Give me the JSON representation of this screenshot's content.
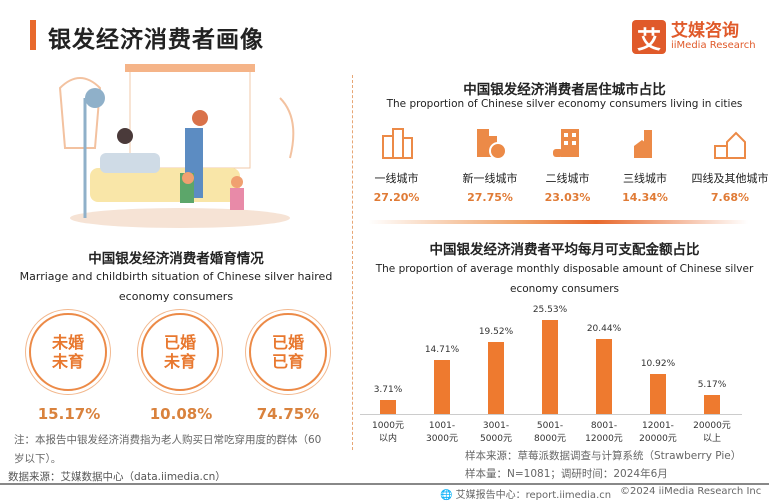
{
  "header": {
    "title": "银发经济消费者画像",
    "logo_cn": "艾媒咨询",
    "logo_en": "iiMedia Research",
    "logo_mark": "艾"
  },
  "marriage": {
    "title": "中国银发经济消费者婚育情况",
    "subtitle_line1": "Marriage and childbirth situation of Chinese silver haired",
    "subtitle_line2": "economy consumers",
    "items": [
      {
        "line1": "未婚",
        "line2": "未育",
        "value": "15.17%"
      },
      {
        "line1": "已婚",
        "line2": "未育",
        "value": "10.08%"
      },
      {
        "line1": "已婚",
        "line2": "已育",
        "value": "74.75%"
      }
    ],
    "note_line1": "注：本报告中银发经济消费指为老人购买日常吃穿用度的群体（60",
    "note_line2": "岁以下）。",
    "source": "数据来源：艾媒数据中心（data.iimedia.cn）"
  },
  "cities": {
    "title": "中国银发经济消费者居住城市占比",
    "subtitle": "The proportion of Chinese silver economy consumers living in cities",
    "items": [
      {
        "label": "一线城市",
        "value": "27.20%",
        "icon": "skyscrapers-icon"
      },
      {
        "label": "新一线城市",
        "value": "27.75%",
        "icon": "office-growth-icon"
      },
      {
        "label": "二线城市",
        "value": "23.03%",
        "icon": "building-icon"
      },
      {
        "label": "三线城市",
        "value": "14.34%",
        "icon": "tower-house-icon"
      },
      {
        "label": "四线及其他城市",
        "value": "7.68%",
        "icon": "house-fence-icon"
      }
    ]
  },
  "chart_data": {
    "type": "bar",
    "title": "中国银发经济消费者平均每月可支配金额占比",
    "subtitle_line1": "The proportion of average monthly disposable amount of Chinese silver",
    "subtitle_line2": "economy consumers",
    "categories": [
      [
        "1000元",
        "以内"
      ],
      [
        "1001-",
        "3000元"
      ],
      [
        "3001-",
        "5000元"
      ],
      [
        "5001-",
        "8000元"
      ],
      [
        "8001-",
        "12000元"
      ],
      [
        "12001-",
        "20000元"
      ],
      [
        "20000元",
        "以上"
      ]
    ],
    "values": [
      3.71,
      14.71,
      19.52,
      25.53,
      20.44,
      10.92,
      5.17
    ],
    "labels": [
      "3.71%",
      "14.71%",
      "19.52%",
      "25.53%",
      "20.44%",
      "10.92%",
      "5.17%"
    ],
    "color": "#ee7a2f",
    "grid": false
  },
  "sample": {
    "source": "样本来源：草莓派数据调查与计算系统（Strawberry Pie）",
    "size": "样本量：N=1081；调研时间：2024年6月"
  },
  "footer": {
    "center": "艾媒报告中心：report.iimedia.cn",
    "copyright": "©2024  iiMedia Research Inc"
  }
}
